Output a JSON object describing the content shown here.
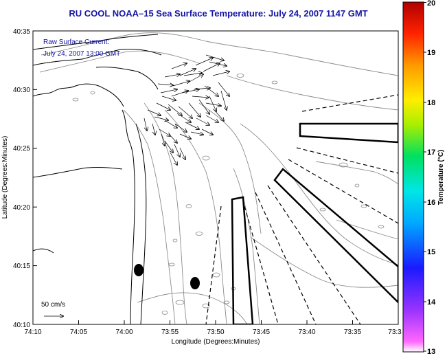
{
  "title": "RU COOL  NOAA–15  Sea Surface Temperature:  July 24, 2007 1147 GMT",
  "annotation": {
    "line1": "Raw Surface Current:",
    "line2": "July 24, 2007 13:00 GMT"
  },
  "scale_label": "50 cm/s",
  "axes": {
    "xlabel": "Longitude (Degrees:Minutes)",
    "ylabel": "Latitude (Degrees:Minutes)",
    "x_ticks": [
      "74:10",
      "74:05",
      "74:00",
      "73:55",
      "73:50",
      "73:45",
      "73:40",
      "73:35",
      "73:3"
    ],
    "y_ticks": [
      "40:35",
      "40:30",
      "40:25",
      "40:20",
      "40:15",
      "40:10"
    ]
  },
  "colorbar": {
    "label": "Temperature (°C)",
    "ticks": [
      "20",
      "19",
      "18",
      "17",
      "16",
      "15",
      "14",
      "13"
    ],
    "min": 13,
    "max": 20
  },
  "colors": {
    "title": "#1515a6",
    "annotation": "#1515a6",
    "contour": "#8c8c8c",
    "coast": "#000000"
  }
}
